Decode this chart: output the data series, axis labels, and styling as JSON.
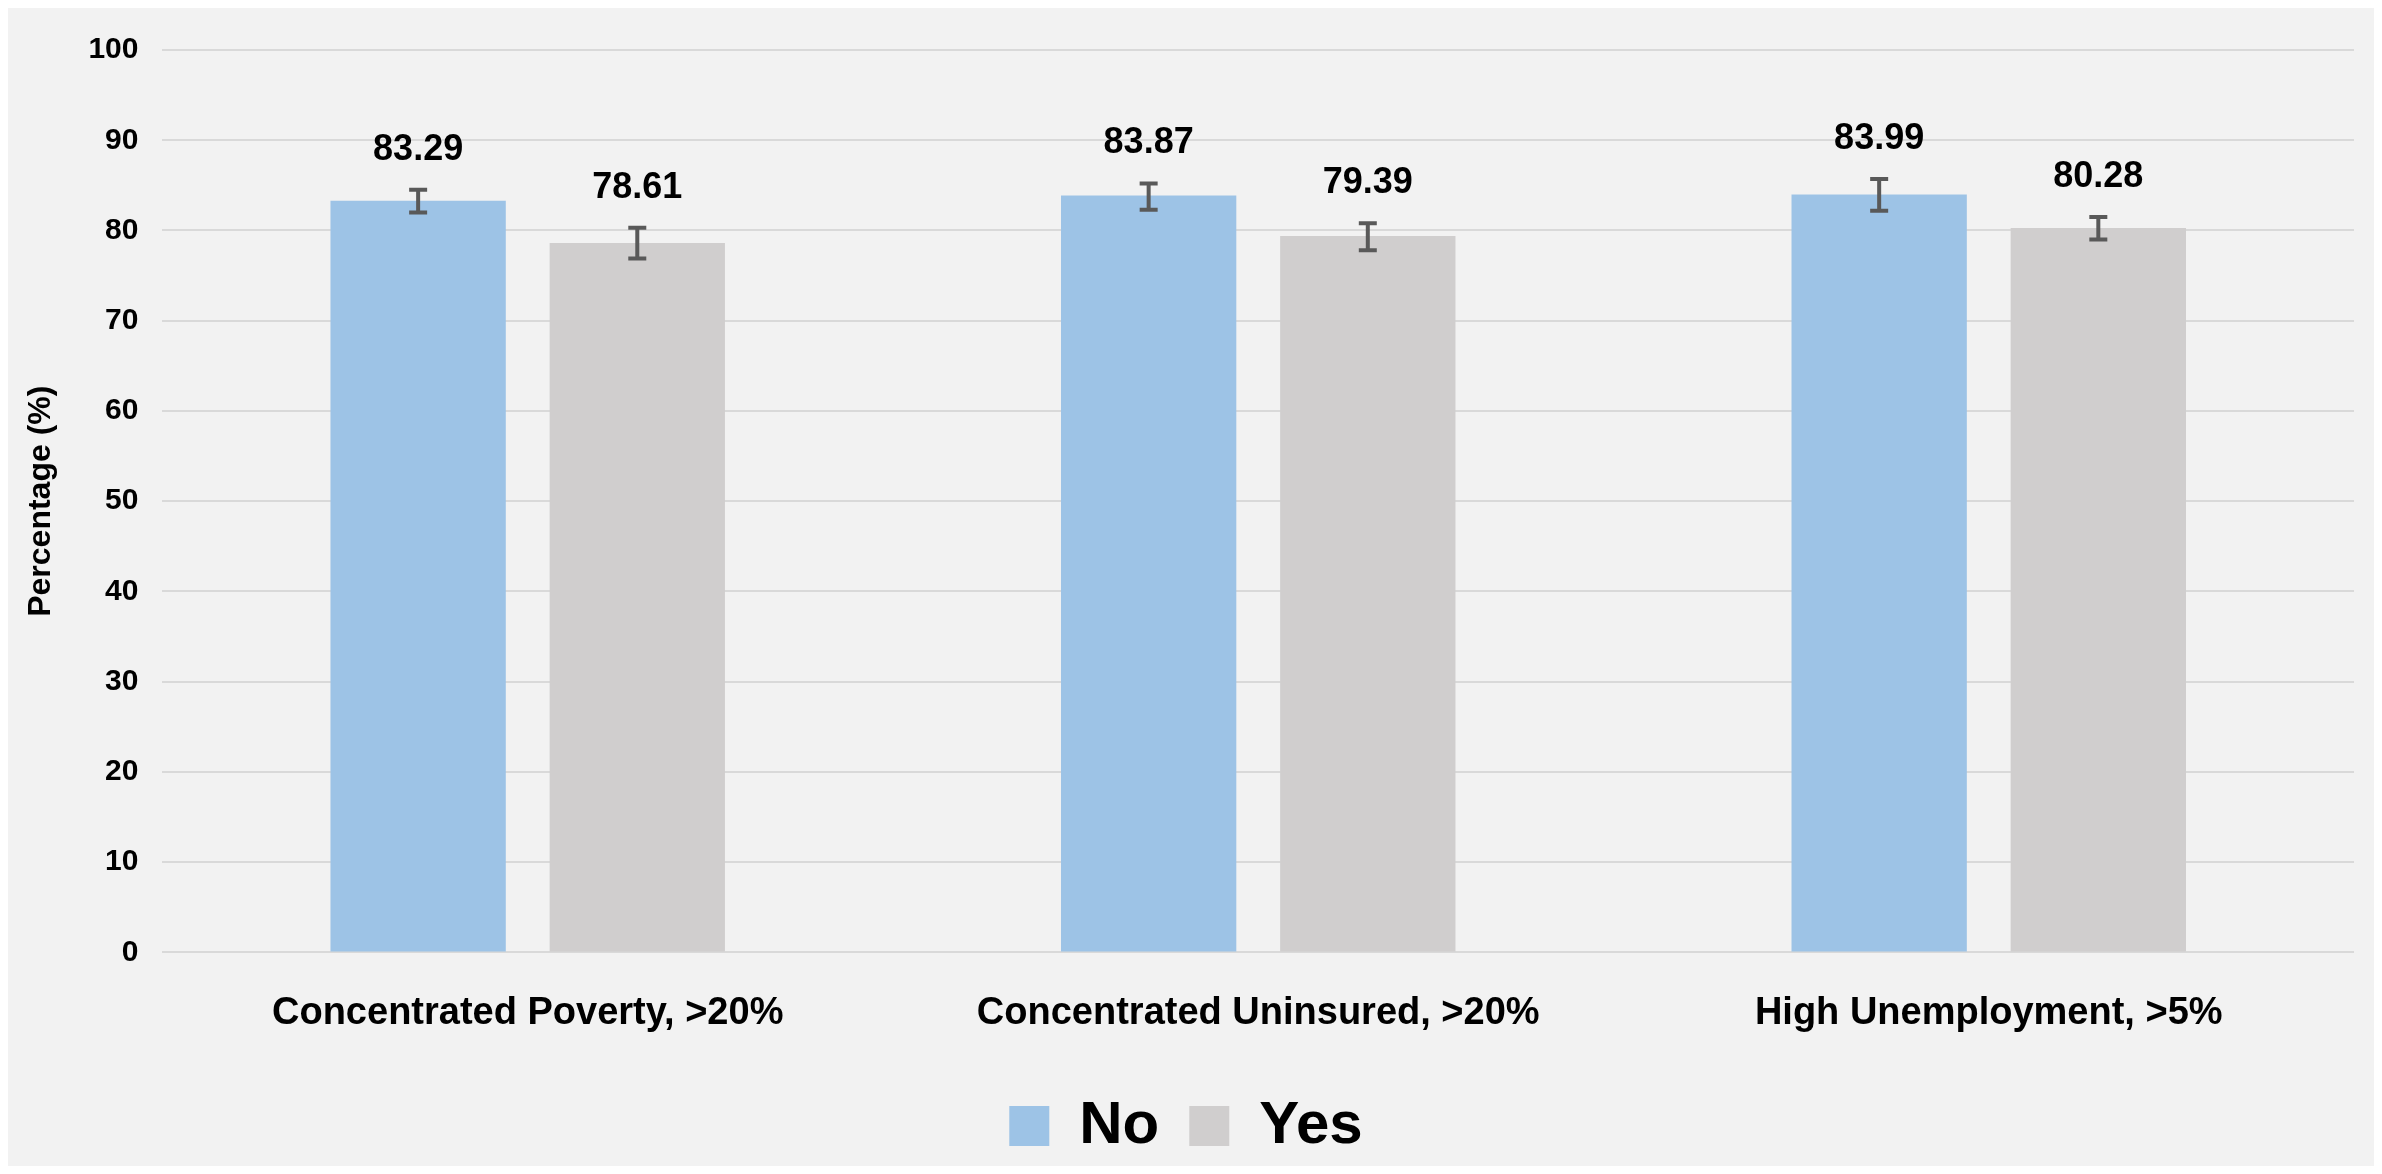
{
  "chart_data": {
    "type": "bar",
    "ylabel": "Percentage (%)",
    "categories": [
      "Concentrated Poverty, >20%",
      "Concentrated Uninsured, >20%",
      "High Unemployment, >5%"
    ],
    "series": [
      {
        "name": "No",
        "color": "#9dc3e6",
        "values": [
          83.29,
          83.87,
          83.99
        ],
        "errors": [
          [
            82.0,
            84.5
          ],
          [
            82.3,
            85.2
          ],
          [
            82.2,
            85.7
          ]
        ]
      },
      {
        "name": "Yes",
        "color": "#d0cece",
        "values": [
          78.61,
          79.39,
          80.28
        ],
        "errors": [
          [
            76.9,
            80.3
          ],
          [
            77.8,
            80.8
          ],
          [
            79.0,
            81.5
          ]
        ]
      }
    ],
    "ylim": [
      0,
      100
    ],
    "yticks": [
      0,
      10,
      20,
      30,
      40,
      50,
      60,
      70,
      80,
      90,
      100
    ],
    "grid": "y",
    "legend": "bottom",
    "data_labels": true
  }
}
